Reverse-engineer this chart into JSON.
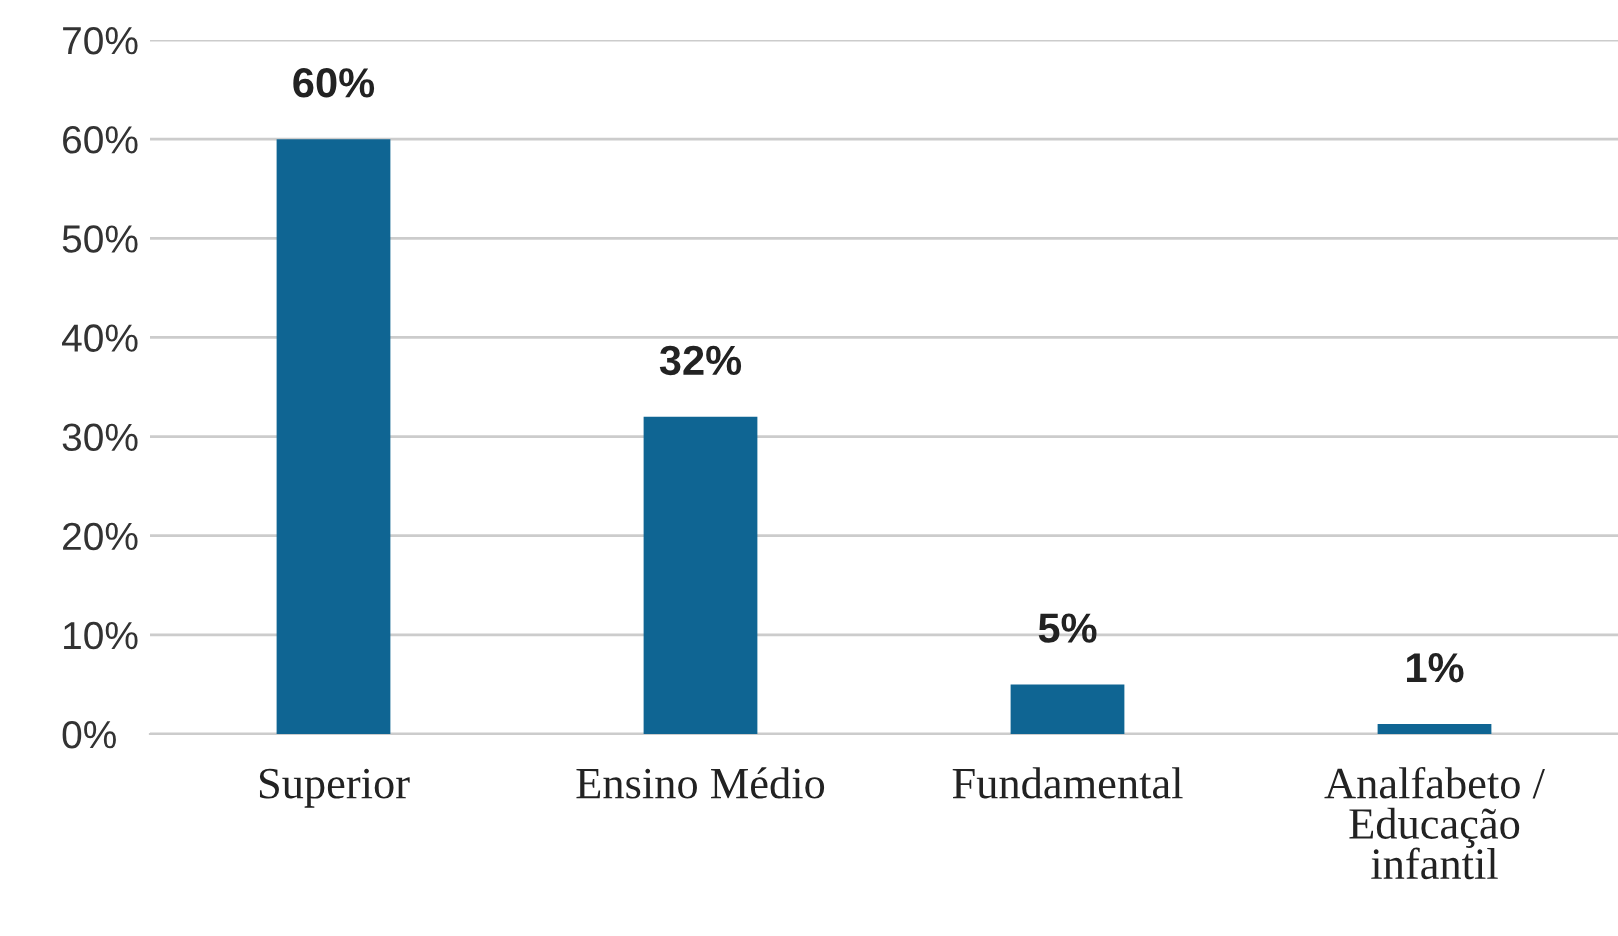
{
  "chart_data": {
    "type": "bar",
    "categories": [
      "Superior",
      "Ensino Médio",
      "Fundamental",
      "Analfabeto /\nEducação\ninfantil"
    ],
    "values": [
      60,
      32,
      5,
      1
    ],
    "value_labels": [
      "60%",
      "32%",
      "5%",
      "1%"
    ],
    "color": "#0f6593",
    "ylim": [
      0,
      70
    ],
    "yticks": [
      {
        "value": 0,
        "label": "0%"
      },
      {
        "value": 10,
        "label": "10%"
      },
      {
        "value": 20,
        "label": "20%"
      },
      {
        "value": 30,
        "label": "30%"
      },
      {
        "value": 40,
        "label": "40%"
      },
      {
        "value": 50,
        "label": "50%"
      },
      {
        "value": 60,
        "label": "60%"
      },
      {
        "value": 70,
        "label": "70%"
      }
    ],
    "grid": "y"
  }
}
